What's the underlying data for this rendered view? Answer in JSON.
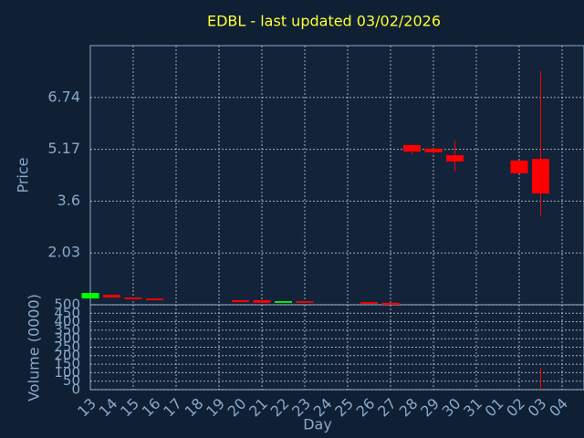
{
  "chart_data": {
    "type": "candlestick",
    "title": "EDBL - last updated 03/02/2026",
    "xlabel": "Day",
    "ylabel": "Price",
    "categories": [
      "13",
      "14",
      "15",
      "16",
      "17",
      "18",
      "19",
      "20",
      "21",
      "22",
      "23",
      "24",
      "25",
      "26",
      "27",
      "28",
      "29",
      "30",
      "31",
      "01",
      "02",
      "03",
      "04"
    ],
    "open": [
      0.65,
      0.76,
      0.68,
      0.65,
      null,
      null,
      null,
      0.6,
      0.6,
      0.52,
      0.57,
      null,
      null,
      0.54,
      0.52,
      5.3,
      5.19,
      4.99,
      null,
      null,
      4.83,
      4.88,
      null
    ],
    "high": [
      0.82,
      0.77,
      0.68,
      0.65,
      null,
      null,
      null,
      0.6,
      0.6,
      0.57,
      0.57,
      null,
      null,
      0.54,
      0.52,
      5.3,
      5.19,
      5.44,
      null,
      null,
      4.83,
      7.54,
      null
    ],
    "low": [
      0.65,
      0.67,
      0.63,
      0.6,
      null,
      null,
      null,
      0.54,
      0.52,
      0.52,
      0.52,
      null,
      null,
      0.49,
      0.46,
      5.02,
      5.02,
      4.5,
      null,
      null,
      4.44,
      3.14,
      null
    ],
    "close": [
      0.82,
      0.68,
      0.63,
      0.6,
      null,
      null,
      null,
      0.54,
      0.52,
      0.57,
      0.52,
      null,
      null,
      0.49,
      0.46,
      5.1,
      5.08,
      4.8,
      null,
      null,
      4.44,
      3.83,
      null
    ],
    "up_color": "#00ff00",
    "down_color": "#ff0000",
    "ylim": [
      0.46,
      8.31
    ],
    "yticks": [
      2.03,
      3.6,
      5.17,
      6.74
    ],
    "grid": true,
    "volume": {
      "ylabel": "Volume (0000)",
      "ylim": [
        0,
        500
      ],
      "yticks": [
        0,
        50,
        100,
        150,
        200,
        250,
        300,
        350,
        400,
        450,
        500
      ],
      "values": [
        1,
        2,
        1,
        1,
        null,
        null,
        null,
        1,
        1,
        1,
        1,
        null,
        null,
        1,
        1,
        1,
        1,
        1,
        null,
        null,
        1,
        129,
        null
      ]
    }
  }
}
